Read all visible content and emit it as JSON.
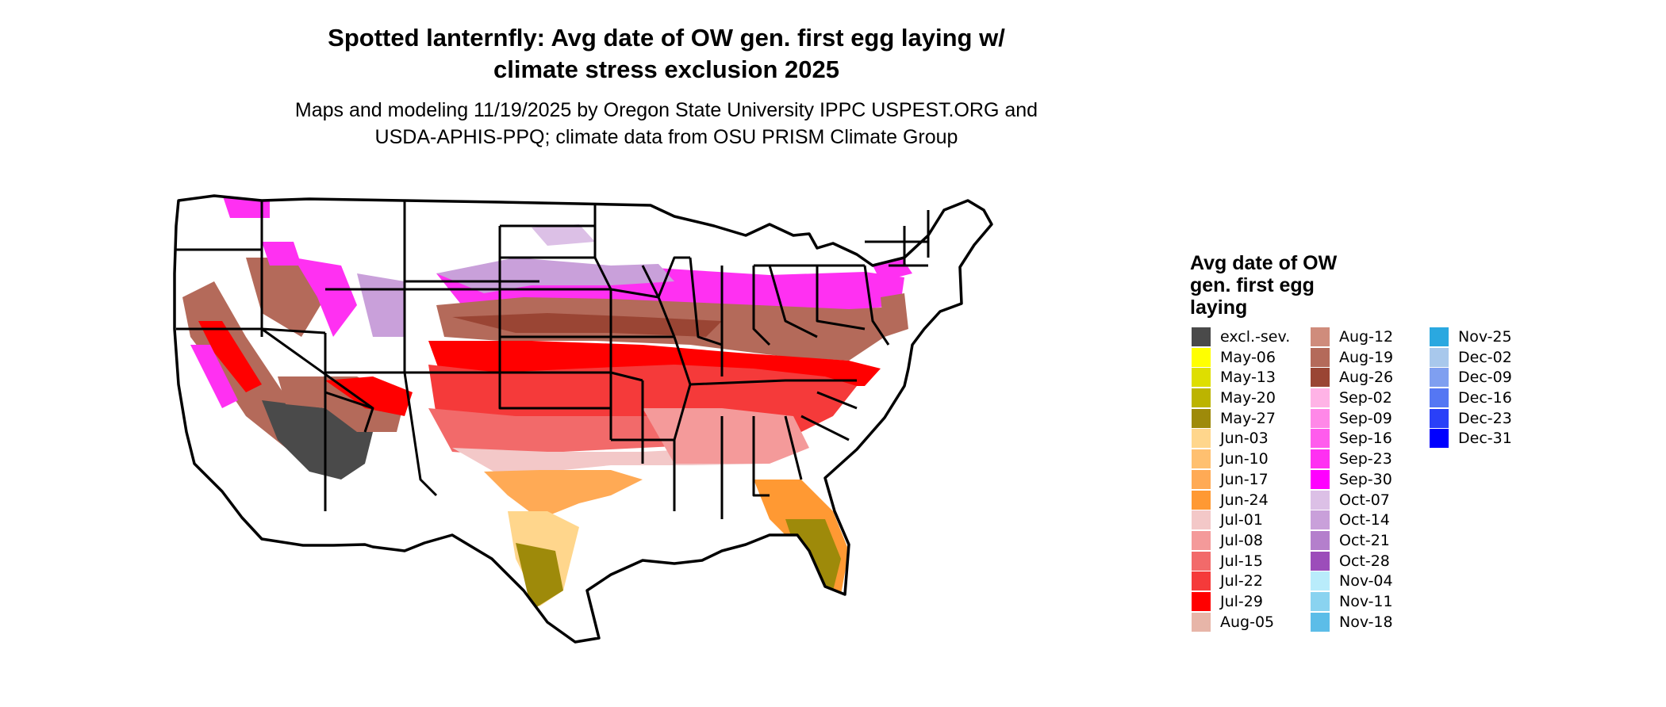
{
  "title_line1": "Spotted lanternfly: Avg date of OW gen. first egg laying w/",
  "title_line2": "climate stress exclusion 2025",
  "subtitle_line1": "Maps and modeling 11/19/2025 by Oregon State University IPPC USPEST.ORG and",
  "subtitle_line2": "USDA-APHIS-PPQ; climate data from OSU PRISM Climate Group",
  "legend": {
    "title_line1": "Avg date of OW",
    "title_line2": "gen. first egg",
    "title_line3": "laying",
    "items": [
      {
        "label": "excl.-sev.",
        "color": "#4a4a4a"
      },
      {
        "label": "May-06",
        "color": "#ffff00"
      },
      {
        "label": "May-13",
        "color": "#dede00"
      },
      {
        "label": "May-20",
        "color": "#bcb400"
      },
      {
        "label": "May-27",
        "color": "#9e8a0a"
      },
      {
        "label": "Jun-03",
        "color": "#ffd68c"
      },
      {
        "label": "Jun-10",
        "color": "#ffc070"
      },
      {
        "label": "Jun-17",
        "color": "#ffaa55"
      },
      {
        "label": "Jun-24",
        "color": "#ff9933"
      },
      {
        "label": "Jul-01",
        "color": "#f3c8c8"
      },
      {
        "label": "Jul-08",
        "color": "#f49a9a"
      },
      {
        "label": "Jul-15",
        "color": "#f26a6a"
      },
      {
        "label": "Jul-22",
        "color": "#f53a3a"
      },
      {
        "label": "Jul-29",
        "color": "#ff0000"
      },
      {
        "label": "Aug-05",
        "color": "#e7b5a8"
      },
      {
        "label": "Aug-12",
        "color": "#cf8c7c"
      },
      {
        "label": "Aug-19",
        "color": "#b46a5a"
      },
      {
        "label": "Aug-26",
        "color": "#9a4534"
      },
      {
        "label": "Sep-02",
        "color": "#ffb3e6"
      },
      {
        "label": "Sep-09",
        "color": "#ff88e8"
      },
      {
        "label": "Sep-16",
        "color": "#ff5ced"
      },
      {
        "label": "Sep-23",
        "color": "#ff30f2"
      },
      {
        "label": "Sep-30",
        "color": "#ff00ff"
      },
      {
        "label": "Oct-07",
        "color": "#dcc0e6"
      },
      {
        "label": "Oct-14",
        "color": "#c9a0da"
      },
      {
        "label": "Oct-21",
        "color": "#b47fcc"
      },
      {
        "label": "Oct-28",
        "color": "#9c4dba"
      },
      {
        "label": "Nov-04",
        "color": "#b9ecfb"
      },
      {
        "label": "Nov-11",
        "color": "#8ad3f0"
      },
      {
        "label": "Nov-18",
        "color": "#5cbde8"
      },
      {
        "label": "Nov-25",
        "color": "#2aa8e0"
      },
      {
        "label": "Dec-02",
        "color": "#a8c8ec"
      },
      {
        "label": "Dec-09",
        "color": "#7f9ff0"
      },
      {
        "label": "Dec-16",
        "color": "#5577f3"
      },
      {
        "label": "Dec-23",
        "color": "#2a40f8"
      },
      {
        "label": "Dec-31",
        "color": "#0000ff"
      }
    ]
  }
}
